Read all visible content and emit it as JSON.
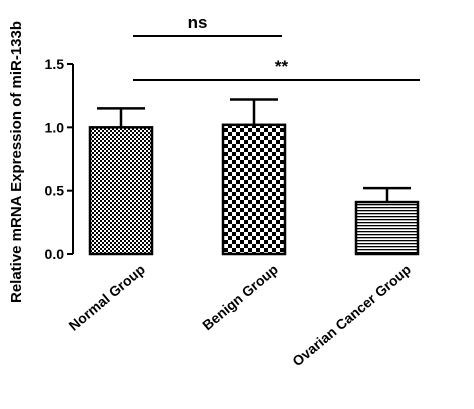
{
  "chart_data": {
    "type": "bar",
    "title": "",
    "xlabel": "",
    "ylabel": "Relative mRNA Expression of miR-133b",
    "ylim": [
      0,
      1.5
    ],
    "yticks": [
      "0.0",
      "0.5",
      "1.0",
      "1.5"
    ],
    "categories": [
      "Normal Group",
      "Benign Group",
      "Ovarian Cancer Group"
    ],
    "values": [
      1.0,
      1.02,
      0.41
    ],
    "error_upper": [
      0.15,
      0.2,
      0.11
    ],
    "patterns": [
      "checker-fine",
      "checker-coarse",
      "horizontal-lines"
    ],
    "significance": [
      {
        "from": 0,
        "to": 1,
        "label": "ns"
      },
      {
        "from": 0,
        "to": 2,
        "label": "**"
      }
    ],
    "grid": false,
    "legend": "none"
  }
}
